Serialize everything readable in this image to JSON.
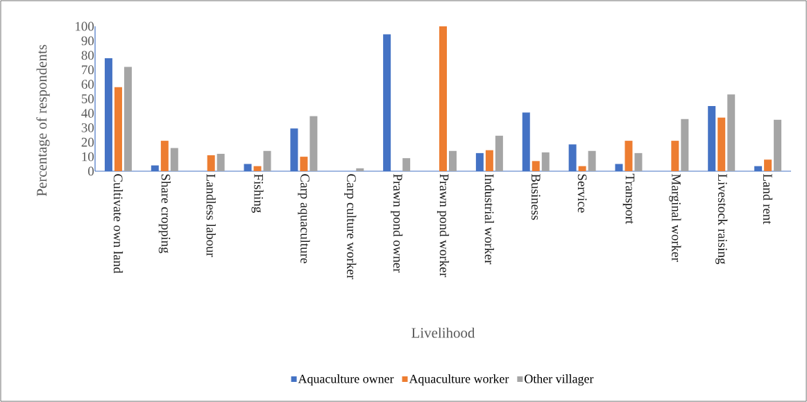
{
  "chart_data": {
    "type": "bar",
    "xlabel": "Livelihood",
    "ylabel": "Percentage of respondents",
    "categories": [
      "Cultivate own land",
      "Share cropping",
      "Landless labour",
      "Fishing",
      "Carp aquaculture",
      "Carp culture worker",
      "Prawn pond owner",
      "Prawn pond worker",
      "Industrial worker",
      "Business",
      "Service",
      "Transport",
      "Marginal worker",
      "Livestock raising",
      "Land rent"
    ],
    "series": [
      {
        "name": "Aquaculture owner",
        "color": "#4472c4",
        "values": [
          78,
          4,
          0,
          5,
          29.5,
          0,
          94.5,
          0,
          12.5,
          40.5,
          18.5,
          5,
          0,
          45,
          3.5
        ]
      },
      {
        "name": "Aquaculture worker",
        "color": "#ed7d31",
        "values": [
          58,
          21,
          11,
          3.5,
          10,
          0,
          0,
          100,
          14.5,
          7,
          3.5,
          21,
          21,
          37,
          8
        ]
      },
      {
        "name": "Other villager",
        "color": "#a5a5a5",
        "values": [
          72,
          16,
          12,
          14,
          38,
          2,
          9,
          14,
          24.5,
          13,
          14,
          12.5,
          36,
          53,
          35.5
        ]
      }
    ],
    "ylim": [
      0,
      100
    ],
    "yticks": [
      0,
      10,
      20,
      30,
      40,
      50,
      60,
      70,
      80,
      90,
      100
    ],
    "legend": "bottom"
  }
}
